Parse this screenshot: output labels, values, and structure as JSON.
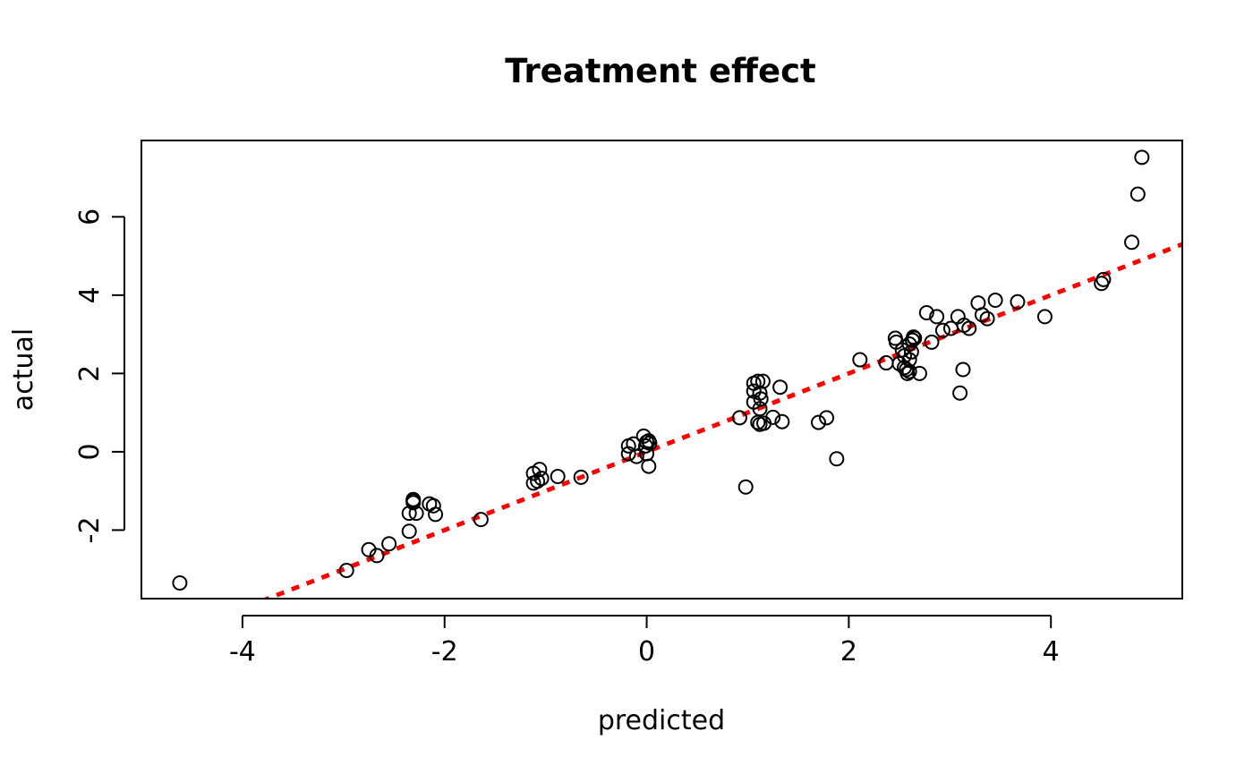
{
  "chart_data": {
    "type": "scatter",
    "title": "Treatment effect",
    "xlabel": "predicted",
    "ylabel": "actual",
    "xlim": [
      -5.0,
      5.3
    ],
    "ylim": [
      -3.75,
      7.95
    ],
    "xticks": [
      -4,
      -2,
      0,
      2,
      4
    ],
    "xtick_labels": [
      "-4",
      "-2",
      "0",
      "2",
      "4"
    ],
    "yticks": [
      -2,
      0,
      2,
      4,
      6
    ],
    "ytick_labels": [
      "-2",
      "0",
      "2",
      "4",
      "6"
    ],
    "grid": false,
    "colors": {
      "points": "#000000",
      "reference_line": "#ff0000"
    },
    "reference_line": {
      "style": "dashed",
      "slope": 1,
      "intercept": 0
    },
    "points": [
      [
        -4.62,
        -3.35
      ],
      [
        -2.97,
        -3.03
      ],
      [
        -2.75,
        -2.5
      ],
      [
        -2.67,
        -2.65
      ],
      [
        -2.55,
        -2.35
      ],
      [
        -2.35,
        -2.03
      ],
      [
        -2.35,
        -1.57
      ],
      [
        -2.28,
        -1.57
      ],
      [
        -2.31,
        -1.22
      ],
      [
        -2.31,
        -1.25
      ],
      [
        -2.31,
        -1.3
      ],
      [
        -2.15,
        -1.33
      ],
      [
        -2.11,
        -1.38
      ],
      [
        -2.09,
        -1.6
      ],
      [
        -1.64,
        -1.73
      ],
      [
        -1.12,
        -0.55
      ],
      [
        -1.12,
        -0.8
      ],
      [
        -1.08,
        -0.75
      ],
      [
        -1.06,
        -0.45
      ],
      [
        -1.04,
        -0.68
      ],
      [
        -0.88,
        -0.63
      ],
      [
        -0.65,
        -0.65
      ],
      [
        -0.18,
        0.15
      ],
      [
        -0.18,
        -0.05
      ],
      [
        -0.13,
        0.2
      ],
      [
        -0.1,
        -0.12
      ],
      [
        -0.03,
        0.4
      ],
      [
        -0.01,
        0.15
      ],
      [
        0.0,
        0.25
      ],
      [
        0.0,
        -0.05
      ],
      [
        0.02,
        0.28
      ],
      [
        0.03,
        0.22
      ],
      [
        0.02,
        -0.37
      ],
      [
        0.92,
        0.87
      ],
      [
        0.98,
        -0.9
      ],
      [
        1.06,
        1.75
      ],
      [
        1.06,
        1.55
      ],
      [
        1.06,
        1.27
      ],
      [
        1.1,
        1.8
      ],
      [
        1.12,
        1.5
      ],
      [
        1.12,
        1.1
      ],
      [
        1.13,
        1.35
      ],
      [
        1.1,
        0.75
      ],
      [
        1.12,
        0.7
      ],
      [
        1.15,
        1.8
      ],
      [
        1.16,
        0.73
      ],
      [
        1.25,
        0.88
      ],
      [
        1.32,
        1.65
      ],
      [
        1.34,
        0.77
      ],
      [
        1.7,
        0.75
      ],
      [
        1.78,
        0.87
      ],
      [
        1.88,
        -0.18
      ],
      [
        2.11,
        2.35
      ],
      [
        2.37,
        2.27
      ],
      [
        2.46,
        2.9
      ],
      [
        2.47,
        2.8
      ],
      [
        2.5,
        2.25
      ],
      [
        2.53,
        2.6
      ],
      [
        2.55,
        2.45
      ],
      [
        2.55,
        2.15
      ],
      [
        2.57,
        2.1
      ],
      [
        2.58,
        2.0
      ],
      [
        2.6,
        2.05
      ],
      [
        2.6,
        2.35
      ],
      [
        2.6,
        2.75
      ],
      [
        2.62,
        2.55
      ],
      [
        2.63,
        2.85
      ],
      [
        2.64,
        2.93
      ],
      [
        2.65,
        2.9
      ],
      [
        2.7,
        2.0
      ],
      [
        2.77,
        3.55
      ],
      [
        2.82,
        2.8
      ],
      [
        2.87,
        3.45
      ],
      [
        2.93,
        3.1
      ],
      [
        3.01,
        3.15
      ],
      [
        3.08,
        3.45
      ],
      [
        3.1,
        1.5
      ],
      [
        3.13,
        2.1
      ],
      [
        3.14,
        3.23
      ],
      [
        3.19,
        3.15
      ],
      [
        3.28,
        3.8
      ],
      [
        3.32,
        3.5
      ],
      [
        3.37,
        3.4
      ],
      [
        3.45,
        3.87
      ],
      [
        3.67,
        3.83
      ],
      [
        3.94,
        3.45
      ],
      [
        4.5,
        4.3
      ],
      [
        4.52,
        4.4
      ],
      [
        4.8,
        5.35
      ],
      [
        4.86,
        6.58
      ],
      [
        4.9,
        7.52
      ]
    ]
  }
}
